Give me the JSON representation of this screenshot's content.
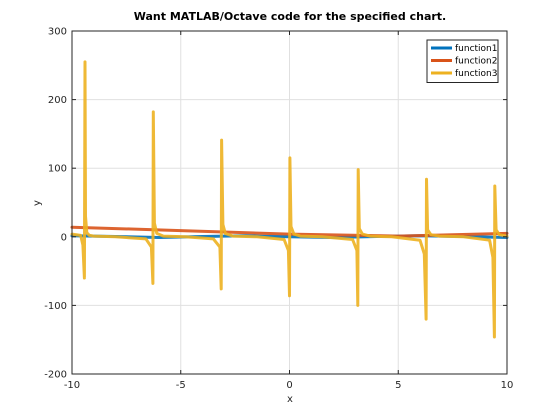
{
  "chart_data": {
    "type": "line",
    "title": "Want MATLAB/Octave code for the specified chart.",
    "xlabel": "x",
    "ylabel": "y",
    "xlim": [
      -10,
      10
    ],
    "ylim": [
      -200,
      300
    ],
    "xticks": [
      -10,
      -5,
      0,
      5,
      10
    ],
    "yticks": [
      -200,
      -100,
      0,
      100,
      200,
      300
    ],
    "grid": true,
    "legend_position": "top-right",
    "series": [
      {
        "name": "function1",
        "color": "#0072BD",
        "x": [
          -10,
          -8,
          -6,
          -4,
          -2,
          0,
          2,
          4,
          6,
          8,
          10
        ],
        "y": [
          1.5,
          0.5,
          -1.0,
          0.5,
          1.5,
          0.0,
          -1.0,
          0.5,
          1.5,
          0.5,
          -1.0
        ]
      },
      {
        "name": "function2",
        "color": "#D95319",
        "x": [
          -10,
          -5,
          0,
          5,
          10
        ],
        "y": [
          14,
          9,
          4,
          1,
          5
        ]
      },
      {
        "name": "function3",
        "color": "#EDB120",
        "x": [
          -10.0,
          -9.6,
          -9.5,
          -9.43,
          -9.4,
          -9.38,
          -9.32,
          -9.2,
          -9.0,
          -8.0,
          -6.6,
          -6.35,
          -6.28,
          -6.26,
          -6.21,
          -6.1,
          -5.8,
          -4.8,
          -3.5,
          -3.2,
          -3.14,
          -3.12,
          -3.06,
          -2.95,
          -2.6,
          -1.5,
          -0.25,
          -0.05,
          0.0,
          0.02,
          0.07,
          0.2,
          0.5,
          1.5,
          2.9,
          3.1,
          3.14,
          3.16,
          3.21,
          3.35,
          3.7,
          4.7,
          6.0,
          6.2,
          6.28,
          6.3,
          6.35,
          6.5,
          6.9,
          8.0,
          9.2,
          9.35,
          9.42,
          9.44,
          9.5,
          9.65,
          10.0
        ],
        "y": [
          4,
          2,
          -12,
          -60,
          255,
          30,
          6,
          2,
          1,
          0,
          -3,
          -15,
          -68,
          182,
          20,
          5,
          1,
          0,
          -3,
          -15,
          -76,
          141,
          18,
          5,
          1,
          0,
          -4,
          -20,
          -86,
          115,
          15,
          4,
          1,
          0,
          -4,
          -20,
          -100,
          98,
          12,
          4,
          1,
          0,
          -5,
          -25,
          -120,
          84,
          10,
          3,
          1,
          0,
          -5,
          -30,
          -146,
          74,
          10,
          3,
          1
        ]
      }
    ]
  }
}
